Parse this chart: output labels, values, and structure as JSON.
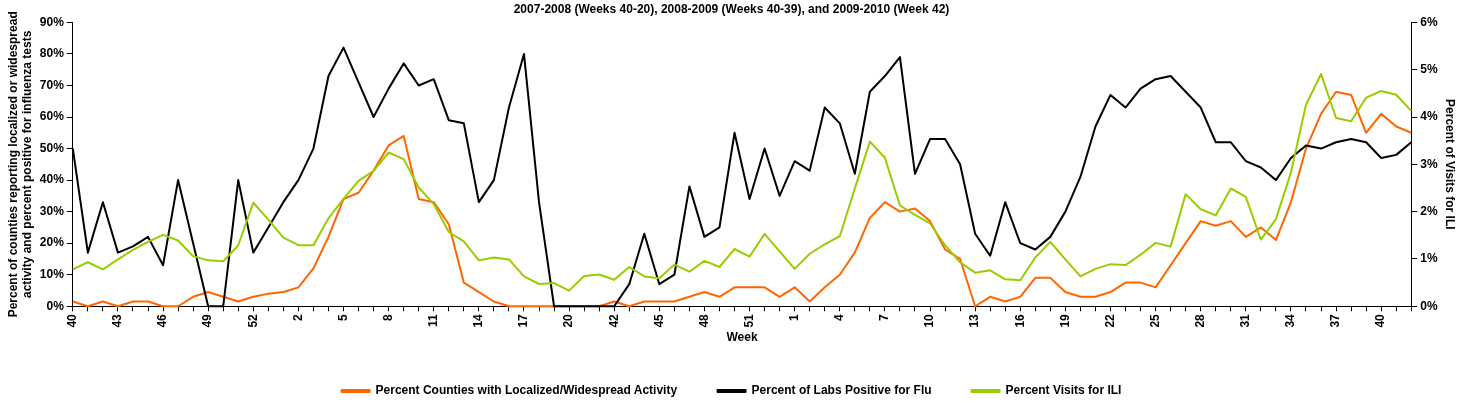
{
  "chart_data": {
    "type": "line",
    "title": "2007-2008 (Weeks 40-20), 2008-2009 (Weeks 40-39), and 2009-2010 (Week 42)",
    "xlabel": "Week",
    "ylabel": "Percent of counties reporting localized or widespread activity and percent positive for influenza tests",
    "y2label": "Percent of Visits for ILI",
    "categories": [
      "40",
      null,
      null,
      "43",
      null,
      null,
      "46",
      null,
      null,
      "49",
      null,
      null,
      "52",
      null,
      null,
      "2",
      null,
      null,
      "5",
      null,
      null,
      "8",
      null,
      null,
      "11",
      null,
      null,
      "14",
      null,
      null,
      "17",
      null,
      null,
      "20",
      null,
      null,
      "42",
      null,
      null,
      "45",
      null,
      null,
      "48",
      null,
      null,
      "51",
      null,
      null,
      "1",
      null,
      null,
      "4",
      null,
      null,
      "7",
      null,
      null,
      "10",
      null,
      null,
      "13",
      null,
      null,
      "16",
      null,
      null,
      "19",
      null,
      null,
      "22",
      null,
      null,
      "25",
      null,
      null,
      "28",
      null,
      null,
      "31",
      null,
      null,
      "34",
      null,
      null,
      "37",
      null,
      null,
      "40",
      null,
      null
    ],
    "series": [
      {
        "name": "Percent Counties with Localized/Widespread Activity",
        "color": "#ff6600",
        "values": [
          1.5,
          0,
          1.5,
          0,
          1.5,
          1.5,
          0,
          0,
          3,
          4.5,
          3,
          1.5,
          3,
          4,
          4.5,
          6,
          12,
          22,
          34,
          36,
          43,
          51,
          54,
          34,
          33,
          26,
          7.5,
          4.5,
          1.5,
          0,
          0,
          0,
          0,
          0,
          0,
          0,
          1.5,
          0,
          1.5,
          1.5,
          1.5,
          3,
          4.5,
          3,
          6,
          6,
          6,
          3,
          6,
          1.5,
          6,
          10,
          17,
          28,
          33,
          30,
          31,
          27,
          18,
          15,
          0,
          3,
          1.5,
          3,
          9,
          9,
          4.5,
          3,
          3,
          4.5,
          7.5,
          7.5,
          6,
          13,
          20,
          27,
          25.5,
          27,
          22,
          25,
          21,
          33,
          50,
          61,
          68,
          67,
          55,
          61,
          57,
          55
        ]
      },
      {
        "name": "Percent of Labs Positive for Flu",
        "color": "#000000",
        "values": [
          50,
          17,
          33,
          17,
          19,
          22,
          13,
          40,
          20,
          0,
          0,
          40,
          17,
          25,
          33,
          40,
          50,
          73,
          82,
          71,
          60,
          69,
          77,
          70,
          72,
          59,
          58,
          33,
          40,
          63,
          80,
          33,
          0,
          0,
          0,
          0,
          0,
          7,
          23,
          7,
          10,
          38,
          22,
          25,
          55,
          34,
          50,
          35,
          46,
          43,
          63,
          58,
          42,
          68,
          73,
          79,
          42,
          53,
          53,
          45,
          23,
          16,
          33,
          20,
          18,
          22,
          30,
          41,
          57,
          67,
          63,
          69,
          72,
          73,
          68,
          63,
          52,
          52,
          46,
          44,
          40,
          47,
          51,
          50,
          52,
          53,
          52,
          47,
          48,
          52
        ]
      },
      {
        "name": "Percent Visits for ILI",
        "color": "#99cc00",
        "axis": "y2",
        "values": [
          0.78,
          0.93,
          0.78,
          0.99,
          1.19,
          1.36,
          1.51,
          1.39,
          1.06,
          0.97,
          0.95,
          1.29,
          2.19,
          1.83,
          1.45,
          1.29,
          1.29,
          1.86,
          2.27,
          2.65,
          2.86,
          3.25,
          3.11,
          2.51,
          2.16,
          1.57,
          1.37,
          0.97,
          1.03,
          0.99,
          0.63,
          0.47,
          0.49,
          0.33,
          0.64,
          0.67,
          0.56,
          0.83,
          0.63,
          0.59,
          0.88,
          0.73,
          0.96,
          0.83,
          1.21,
          1.05,
          1.53,
          1.16,
          0.79,
          1.11,
          1.31,
          1.48,
          2.49,
          3.48,
          3.14,
          2.13,
          1.93,
          1.75,
          1.29,
          0.93,
          0.71,
          0.76,
          0.57,
          0.55,
          1.03,
          1.36,
          0.99,
          0.63,
          0.79,
          0.89,
          0.87,
          1.09,
          1.34,
          1.26,
          2.37,
          2.05,
          1.92,
          2.49,
          2.31,
          1.41,
          1.84,
          2.83,
          4.26,
          4.91,
          3.98,
          3.91,
          4.41,
          4.55,
          4.47,
          4.13
        ]
      }
    ],
    "ylim": [
      0,
      90
    ],
    "yticks": [
      {
        "value": 0,
        "label": "0%"
      },
      {
        "value": 10,
        "label": "10%"
      },
      {
        "value": 20,
        "label": "20%"
      },
      {
        "value": 30,
        "label": "30%"
      },
      {
        "value": 40,
        "label": "40%"
      },
      {
        "value": 50,
        "label": "50%"
      },
      {
        "value": 60,
        "label": "60%"
      },
      {
        "value": 70,
        "label": "70%"
      },
      {
        "value": 80,
        "label": "80%"
      },
      {
        "value": 90,
        "label": "90%"
      }
    ],
    "y2lim": [
      0,
      6
    ],
    "y2ticks": [
      {
        "value": 0,
        "label": "0%"
      },
      {
        "value": 1,
        "label": "1%"
      },
      {
        "value": 2,
        "label": "2%"
      },
      {
        "value": 3,
        "label": "3%"
      },
      {
        "value": 4,
        "label": "4%"
      },
      {
        "value": 5,
        "label": "5%"
      },
      {
        "value": 6,
        "label": "6%"
      }
    ],
    "grid": false,
    "legend": "bottom",
    "marker": "none",
    "line_style": "solid"
  }
}
